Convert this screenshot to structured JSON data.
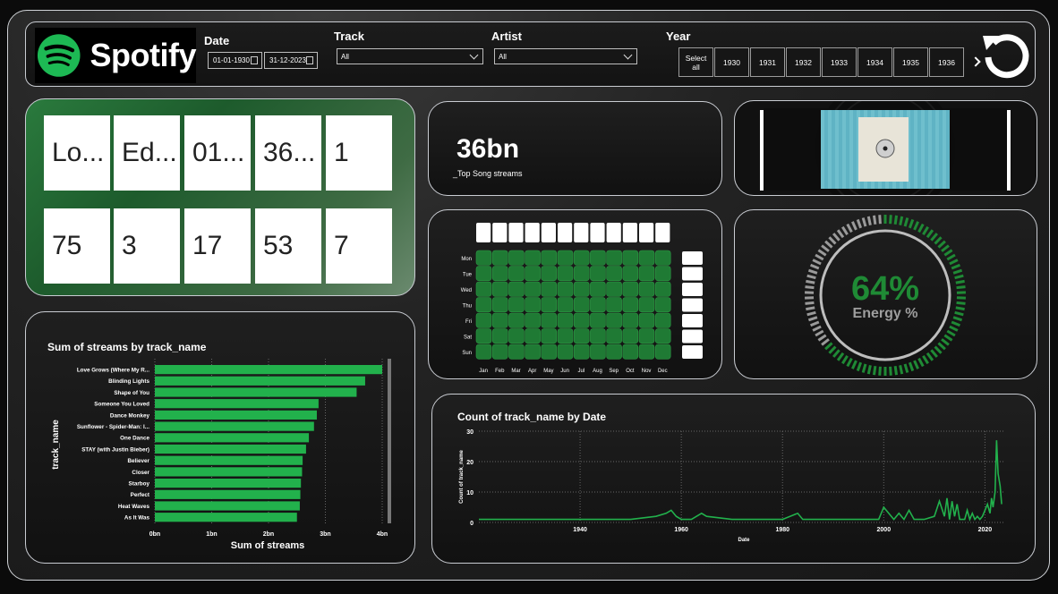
{
  "header": {
    "brand": "Spotify",
    "date_label": "Date",
    "date_start": "01-01-1930",
    "date_end": "31-12-2023",
    "track_label": "Track",
    "track_value": "All",
    "artist_label": "Artist",
    "artist_value": "All",
    "year_label": "Year",
    "year_buttons": [
      "Select all",
      "1930",
      "1931",
      "1932",
      "1933",
      "1934",
      "1935",
      "1936"
    ],
    "colors": {
      "brand_green": "#1db954"
    }
  },
  "kpi_tiles": {
    "row1": [
      "Lo...",
      "Ed...",
      "01...",
      "36...",
      "1"
    ],
    "row2": [
      "75",
      "3",
      "17",
      "53",
      "7"
    ]
  },
  "top_song": {
    "value": "36bn",
    "label": "_Top Song streams"
  },
  "heatmap": {
    "days": [
      "Mon",
      "Tue",
      "Wed",
      "Thu",
      "Fri",
      "Sat",
      "Sun"
    ],
    "months": [
      "Jan",
      "Feb",
      "Mar",
      "Apr",
      "May",
      "Jun",
      "Jul",
      "Aug",
      "Sep",
      "Oct",
      "Nov",
      "Dec"
    ],
    "cell_color": "#1f7a34"
  },
  "gauge": {
    "value": "64%",
    "label": "Energy %",
    "fraction": 0.64,
    "color": "#1f8a35"
  },
  "chart_data": [
    {
      "type": "bar",
      "orientation": "horizontal",
      "title": "Sum of streams by track_name",
      "xlabel": "Sum of streams",
      "ylabel": "track_name",
      "categories": [
        "Love Grows (Where My R...",
        "Blinding Lights",
        "Shape of You",
        "Someone You Loved",
        "Dance Monkey",
        "Sunflower - Spider-Man: I...",
        "One Dance",
        "STAY (with Justin Bieber)",
        "Believer",
        "Closer",
        "Starboy",
        "Perfect",
        "Heat Waves",
        "As It Was"
      ],
      "values": [
        4.0,
        3.7,
        3.55,
        2.88,
        2.85,
        2.8,
        2.71,
        2.66,
        2.6,
        2.59,
        2.57,
        2.56,
        2.55,
        2.5
      ],
      "xticks": [
        "0bn",
        "1bn",
        "2bn",
        "3bn",
        "4bn"
      ],
      "xlim": [
        0,
        4
      ],
      "color": "#22b14c"
    },
    {
      "type": "line",
      "title": "Count of track_name by Date",
      "xlabel": "Date",
      "ylabel": "Count of track_name",
      "yticks": [
        "0",
        "10",
        "20",
        "30"
      ],
      "ylim": [
        0,
        30
      ],
      "xticks": [
        "1940",
        "1960",
        "1980",
        "2000",
        "2020"
      ],
      "xlim": [
        1920,
        2024
      ],
      "x": [
        1920,
        1940,
        1950,
        1955,
        1957,
        1958,
        1959,
        1960,
        1962,
        1964,
        1965,
        1970,
        1975,
        1980,
        1983,
        1984,
        1985,
        1995,
        1998,
        1999,
        2000,
        2002,
        2003,
        2004,
        2005,
        2006,
        2008,
        2010,
        2011,
        2012,
        2012.5,
        2013,
        2013.5,
        2014,
        2014.5,
        2015,
        2016,
        2016.5,
        2017,
        2017.5,
        2018,
        2018.5,
        2019,
        2019.5,
        2020,
        2020.5,
        2021,
        2021.3,
        2021.6,
        2022,
        2022.3,
        2022.6,
        2023,
        2023.3
      ],
      "y": [
        1,
        1,
        1,
        2,
        3,
        4,
        2,
        1,
        1,
        3,
        2,
        1,
        1,
        1,
        3,
        1,
        1,
        1,
        1,
        1,
        5,
        1,
        3,
        1,
        4,
        1,
        1,
        2,
        7,
        2,
        8,
        1,
        7,
        2,
        6,
        1,
        1,
        4,
        1,
        3,
        1,
        2,
        1,
        2,
        4,
        6,
        3,
        8,
        5,
        10,
        27,
        16,
        12,
        6
      ],
      "color": "#22b14c"
    }
  ]
}
